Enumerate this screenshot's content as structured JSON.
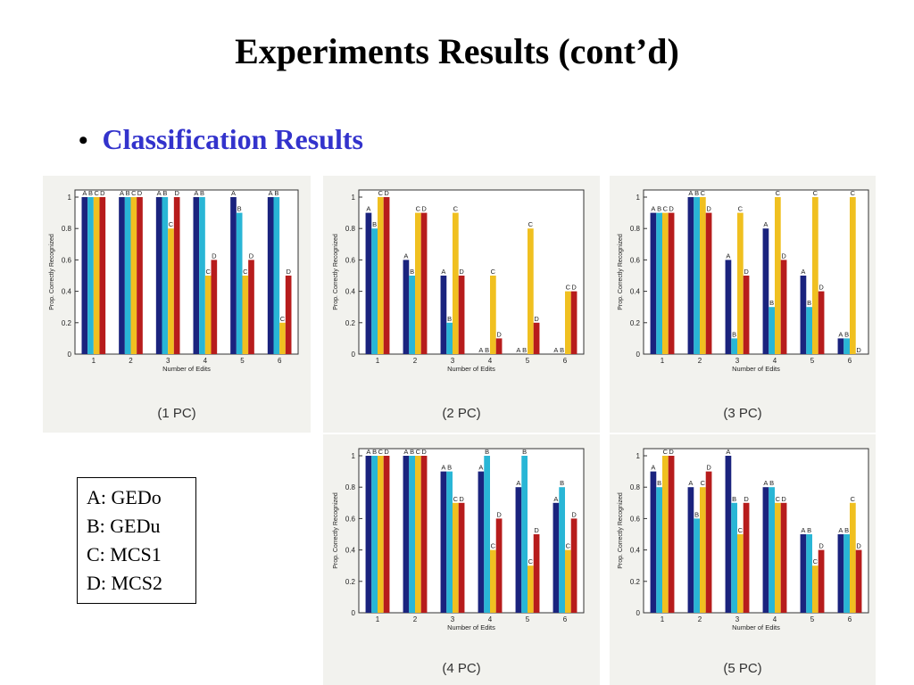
{
  "title": "Experiments Results (cont’d)",
  "bullet": {
    "symbol": "•",
    "text": "Classification Results"
  },
  "legend": {
    "items": [
      "A: GEDo",
      "B: GEDu",
      "C: MCS1",
      "D: MCS2"
    ]
  },
  "colors": {
    "A": "#1a237e",
    "B": "#29b6d6",
    "C": "#f0c020",
    "D": "#b71c1c",
    "panel_bg": "#f2f2ee"
  },
  "chart_data": [
    {
      "type": "bar",
      "caption": "(1 PC)",
      "xlabel": "Number of Edits",
      "ylabel": "Prop. Correctly Recognized",
      "ylim": [
        0,
        1
      ],
      "yticks": [
        "0",
        "0.2",
        "0.4",
        "0.6",
        "0.8",
        "1"
      ],
      "categories": [
        "1",
        "2",
        "3",
        "4",
        "5",
        "6"
      ],
      "series": [
        {
          "name": "A",
          "values": [
            1.0,
            1.0,
            1.0,
            1.0,
            1.0,
            1.0
          ]
        },
        {
          "name": "B",
          "values": [
            1.0,
            1.0,
            1.0,
            1.0,
            0.9,
            1.0
          ]
        },
        {
          "name": "C",
          "values": [
            1.0,
            1.0,
            0.8,
            0.5,
            0.5,
            0.2
          ]
        },
        {
          "name": "D",
          "values": [
            1.0,
            1.0,
            1.0,
            0.6,
            0.6,
            0.5
          ]
        }
      ]
    },
    {
      "type": "bar",
      "caption": "(2 PC)",
      "xlabel": "Number of Edits",
      "ylabel": "Prop. Correctly Recognized",
      "ylim": [
        0,
        1
      ],
      "yticks": [
        "0",
        "0.2",
        "0.4",
        "0.6",
        "0.8",
        "1"
      ],
      "categories": [
        "1",
        "2",
        "3",
        "4",
        "5",
        "6"
      ],
      "series": [
        {
          "name": "A",
          "values": [
            0.9,
            0.6,
            0.5,
            0.0,
            0.0,
            0.0
          ]
        },
        {
          "name": "B",
          "values": [
            0.8,
            0.5,
            0.2,
            0.0,
            0.0,
            0.0
          ]
        },
        {
          "name": "C",
          "values": [
            1.0,
            0.9,
            0.9,
            0.5,
            0.8,
            0.4
          ]
        },
        {
          "name": "D",
          "values": [
            1.0,
            0.9,
            0.5,
            0.1,
            0.2,
            0.4
          ]
        }
      ]
    },
    {
      "type": "bar",
      "caption": "(3 PC)",
      "xlabel": "Number of Edits",
      "ylabel": "Prop. Correctly Recognized",
      "ylim": [
        0,
        1
      ],
      "yticks": [
        "0",
        "0.2",
        "0.4",
        "0.6",
        "0.8",
        "1"
      ],
      "categories": [
        "1",
        "2",
        "3",
        "4",
        "5",
        "6"
      ],
      "series": [
        {
          "name": "A",
          "values": [
            0.9,
            1.0,
            0.6,
            0.8,
            0.5,
            0.1
          ]
        },
        {
          "name": "B",
          "values": [
            0.9,
            1.0,
            0.1,
            0.3,
            0.3,
            0.1
          ]
        },
        {
          "name": "C",
          "values": [
            0.9,
            1.0,
            0.9,
            1.0,
            1.0,
            1.0
          ]
        },
        {
          "name": "D",
          "values": [
            0.9,
            0.9,
            0.5,
            0.6,
            0.4,
            0.0
          ]
        }
      ]
    },
    {
      "type": "bar",
      "caption": "(4 PC)",
      "xlabel": "Number of Edits",
      "ylabel": "Prop. Correctly Recognized",
      "ylim": [
        0,
        1
      ],
      "yticks": [
        "0",
        "0.2",
        "0.4",
        "0.6",
        "0.8",
        "1"
      ],
      "categories": [
        "1",
        "2",
        "3",
        "4",
        "5",
        "6"
      ],
      "series": [
        {
          "name": "A",
          "values": [
            1.0,
            1.0,
            0.9,
            0.9,
            0.8,
            0.7
          ]
        },
        {
          "name": "B",
          "values": [
            1.0,
            1.0,
            0.9,
            1.0,
            1.0,
            0.8
          ]
        },
        {
          "name": "C",
          "values": [
            1.0,
            1.0,
            0.7,
            0.4,
            0.3,
            0.4
          ]
        },
        {
          "name": "D",
          "values": [
            1.0,
            1.0,
            0.7,
            0.6,
            0.5,
            0.6
          ]
        }
      ]
    },
    {
      "type": "bar",
      "caption": "(5 PC)",
      "xlabel": "Number of Edits",
      "ylabel": "Prop. Correctly Recognized",
      "ylim": [
        0,
        1
      ],
      "yticks": [
        "0",
        "0.2",
        "0.4",
        "0.6",
        "0.8",
        "1"
      ],
      "categories": [
        "1",
        "2",
        "3",
        "4",
        "5",
        "6"
      ],
      "series": [
        {
          "name": "A",
          "values": [
            0.9,
            0.8,
            1.0,
            0.8,
            0.5,
            0.5
          ]
        },
        {
          "name": "B",
          "values": [
            0.8,
            0.6,
            0.7,
            0.8,
            0.5,
            0.5
          ]
        },
        {
          "name": "C",
          "values": [
            1.0,
            0.8,
            0.5,
            0.7,
            0.3,
            0.7
          ]
        },
        {
          "name": "D",
          "values": [
            1.0,
            0.9,
            0.7,
            0.7,
            0.4,
            0.4
          ]
        }
      ]
    }
  ]
}
